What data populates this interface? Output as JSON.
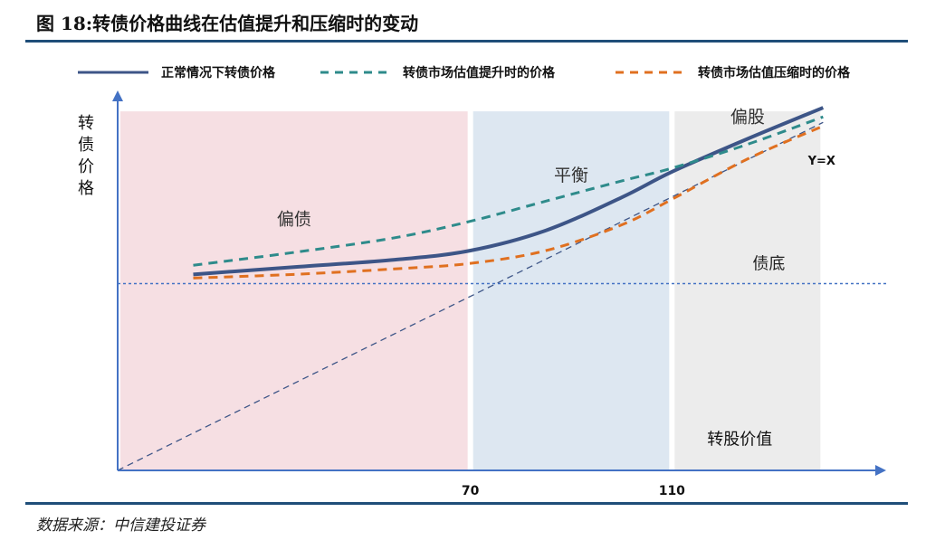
{
  "header": {
    "title": "图 18:转债价格曲线在估值提升和压缩时的变动"
  },
  "footer": {
    "source": "数据来源：中信建投证券"
  },
  "colors": {
    "normal": "#3d5587",
    "up": "#2e8b8b",
    "down": "#e07020",
    "zone_bond": "#f6dfe3",
    "zone_balance": "#dde7f1",
    "zone_equity": "#ececec",
    "axis": "#4472c4",
    "rule": "#1f4e79"
  },
  "chart_data": {
    "type": "line",
    "title": "",
    "xlabel": "转股价值",
    "ylabel": "转债价格",
    "x_ticks": [
      "70",
      "110"
    ],
    "zones": [
      {
        "name": "偏债",
        "from": 0,
        "to": 70
      },
      {
        "name": "平衡",
        "from": 70,
        "to": 110
      },
      {
        "name": "偏股",
        "from": 110,
        "to": 140
      }
    ],
    "bond_floor": {
      "label": "债底",
      "y": 102
    },
    "reference_line": {
      "label": "Y=X"
    },
    "legend": {
      "placement": "top",
      "entries": [
        "正常情况下转债价格",
        "转债市场估值提升时的价格",
        "转债市场估值压缩时的价格"
      ]
    },
    "xlim": [
      0,
      150
    ],
    "ylim": [
      0,
      200
    ],
    "series": [
      {
        "name": "正常情况下转债价格",
        "style": "solid",
        "x": [
          15,
          35,
          55,
          70,
          85,
          100,
          110,
          125,
          140
        ],
        "y": [
          107,
          111,
          115,
          120,
          131,
          149,
          163,
          181,
          198
        ]
      },
      {
        "name": "转债市场估值提升时的价格",
        "style": "dashed",
        "x": [
          15,
          35,
          55,
          70,
          85,
          100,
          110,
          125,
          140
        ],
        "y": [
          112,
          119,
          127,
          136,
          147,
          158,
          165,
          178,
          193
        ]
      },
      {
        "name": "转债市场估值压缩时的价格",
        "style": "dashed",
        "x": [
          15,
          35,
          55,
          70,
          85,
          100,
          110,
          125,
          140
        ],
        "y": [
          105,
          107,
          110,
          113,
          120,
          134,
          148,
          170,
          188
        ]
      }
    ]
  }
}
